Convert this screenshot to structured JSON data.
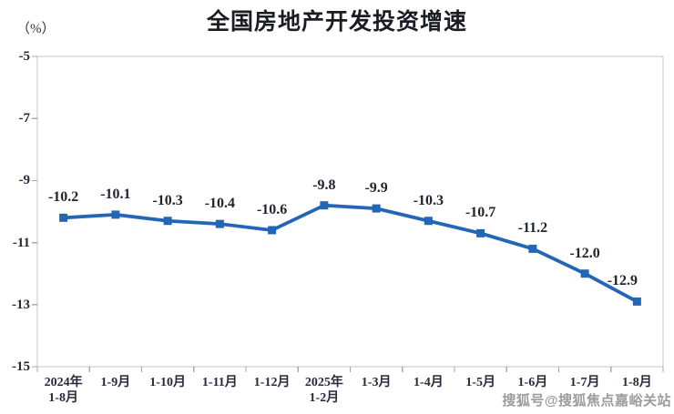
{
  "chart_data": {
    "type": "line",
    "title": "全国房地产开发投资增速",
    "ylabel": "（%）",
    "xlabel": "",
    "categories": [
      "2024年 1-8月",
      "1-9月",
      "1-10月",
      "1-11月",
      "1-12月",
      "2025年 1-2月",
      "1-3月",
      "1-4月",
      "1-5月",
      "1-6月",
      "1-7月",
      "1-8月"
    ],
    "category_lines": [
      [
        "2024年",
        "1-8月"
      ],
      [
        "1-9月"
      ],
      [
        "1-10月"
      ],
      [
        "1-11月"
      ],
      [
        "1-12月"
      ],
      [
        "2025年",
        "1-2月"
      ],
      [
        "1-3月"
      ],
      [
        "1-4月"
      ],
      [
        "1-5月"
      ],
      [
        "1-6月"
      ],
      [
        "1-7月"
      ],
      [
        "1-8月"
      ]
    ],
    "series": [
      {
        "name": "全国房地产开发投资增速",
        "values": [
          -10.2,
          -10.1,
          -10.3,
          -10.4,
          -10.6,
          -9.8,
          -9.9,
          -10.3,
          -10.7,
          -11.2,
          -12.0,
          -12.9
        ]
      }
    ],
    "ylim": [
      -15,
      -5
    ],
    "yticks": [
      -5,
      -7,
      -9,
      -11,
      -13,
      -15
    ],
    "grid": false,
    "legend_position": "none",
    "data_labels": true,
    "line_color": "#2366b8",
    "marker": "square",
    "axis_color": "#c6c6c6",
    "tick_color": "#a8a8a8",
    "label_color": "#20242f"
  },
  "watermark": {
    "text": "搜狐号@搜狐焦点嘉峪关站"
  }
}
